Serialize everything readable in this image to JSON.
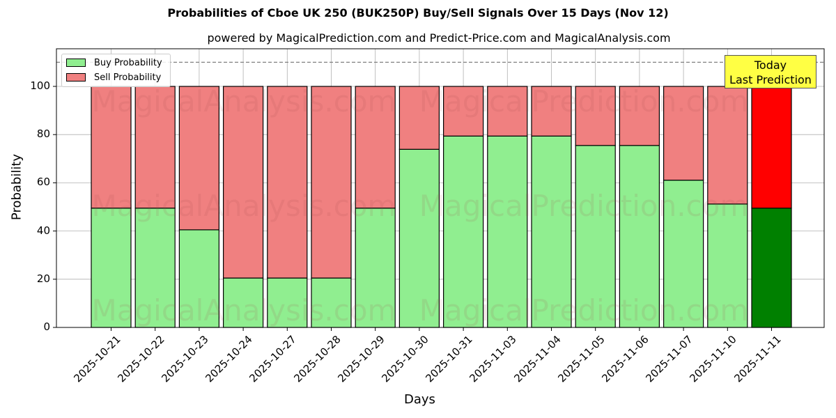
{
  "chart_data": {
    "type": "bar",
    "stacked": true,
    "title": "Probabilities of Cboe UK 250 (BUK250P) Buy/Sell Signals Over 15 Days (Nov 12)",
    "subtitle": "powered by MagicalPrediction.com and Predict-Price.com and MagicalAnalysis.com",
    "xlabel": "Days",
    "ylabel": "Probability",
    "ylim": [
      0,
      115
    ],
    "yticks": [
      0,
      20,
      40,
      60,
      80,
      100
    ],
    "grid": true,
    "legend_position": "upper left",
    "categories": [
      "2025-10-21",
      "2025-10-22",
      "2025-10-23",
      "2025-10-24",
      "2025-10-27",
      "2025-10-28",
      "2025-10-29",
      "2025-10-30",
      "2025-10-31",
      "2025-11-03",
      "2025-11-04",
      "2025-11-05",
      "2025-11-06",
      "2025-11-07",
      "2025-11-10",
      "2025-11-11"
    ],
    "series": [
      {
        "name": "Buy Probability",
        "color": "#90ee90",
        "values": [
          49.5,
          49.5,
          40.5,
          20.5,
          20.5,
          20.5,
          49.5,
          73.9,
          79.4,
          79.4,
          79.4,
          75.5,
          75.5,
          61.1,
          51.2,
          49.5
        ]
      },
      {
        "name": "Sell Probability",
        "color": "#f08080",
        "values": [
          50.5,
          50.5,
          59.5,
          79.5,
          79.5,
          79.5,
          50.5,
          26.1,
          20.6,
          20.6,
          20.6,
          24.5,
          24.5,
          38.9,
          48.8,
          50.5
        ]
      }
    ],
    "highlight": {
      "index": 15,
      "buy_color": "#008000",
      "sell_color": "#ff0000"
    },
    "reference_line": {
      "y": 110,
      "style": "dashed",
      "color": "#808080"
    },
    "annotation": {
      "line1": "Today",
      "line2": "Last Prediction",
      "background": "#ffff44"
    },
    "watermarks": [
      "MagicalAnalysis.com",
      "MagicalPrediction.com"
    ]
  }
}
